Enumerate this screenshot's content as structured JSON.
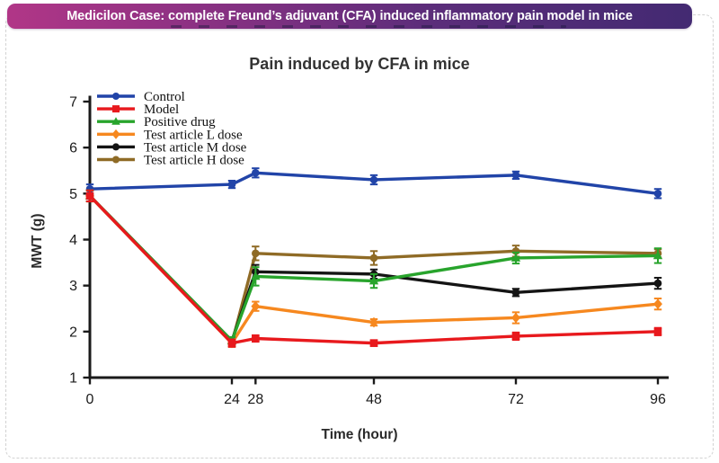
{
  "banner": {
    "text": "Medicilon Case: complete Freund’s adjuvant (CFA) induced inflammatory pain model in mice",
    "gradient_left": "#b13687",
    "gradient_right": "#432a72",
    "text_color": "#ffffff"
  },
  "chart_data": {
    "type": "line",
    "title": "Pain induced by CFA in mice",
    "xlabel": "Time (hour)",
    "ylabel": "MWT (g)",
    "x": [
      0,
      24,
      28,
      48,
      72,
      96
    ],
    "x_ticks": [
      0,
      24,
      28,
      48,
      72,
      96
    ],
    "y_ticks": [
      1,
      2,
      3,
      4,
      5,
      6,
      7
    ],
    "xlim": [
      0,
      96
    ],
    "ylim": [
      1,
      7
    ],
    "grid": false,
    "legend_position": "top-left",
    "error_bars": true,
    "series": [
      {
        "name": "Control",
        "color": "#2144a8",
        "marker": "circle",
        "values": [
          5.1,
          5.2,
          5.45,
          5.3,
          5.4,
          5.0
        ],
        "errors": [
          0.1,
          0.08,
          0.1,
          0.1,
          0.08,
          0.1
        ]
      },
      {
        "name": "Model",
        "color": "#e8191d",
        "marker": "square",
        "values": [
          4.95,
          1.75,
          1.85,
          1.75,
          1.9,
          2.0
        ],
        "errors": [
          0.12,
          0.08,
          0.07,
          0.06,
          0.08,
          0.08
        ]
      },
      {
        "name": "Positive drug",
        "color": "#28a42c",
        "marker": "triangle",
        "values": [
          4.95,
          1.8,
          3.2,
          3.1,
          3.6,
          3.65
        ],
        "errors": [
          0.12,
          0.08,
          0.2,
          0.15,
          0.12,
          0.16
        ]
      },
      {
        "name": "Test article L dose",
        "color": "#f6881f",
        "marker": "diamond",
        "values": [
          4.95,
          1.75,
          2.55,
          2.2,
          2.3,
          2.6
        ],
        "errors": [
          0.12,
          0.08,
          0.1,
          0.07,
          0.12,
          0.12
        ]
      },
      {
        "name": "Test article M dose",
        "color": "#141414",
        "marker": "circle",
        "values": [
          4.95,
          1.8,
          3.3,
          3.25,
          2.85,
          3.05
        ],
        "errors": [
          0.12,
          0.08,
          0.15,
          0.1,
          0.08,
          0.12
        ]
      },
      {
        "name": "Test article H dose",
        "color": "#8f6b26",
        "marker": "circle",
        "values": [
          4.95,
          1.75,
          3.7,
          3.6,
          3.75,
          3.7
        ],
        "errors": [
          0.12,
          0.08,
          0.15,
          0.15,
          0.12,
          0.09
        ]
      }
    ]
  }
}
